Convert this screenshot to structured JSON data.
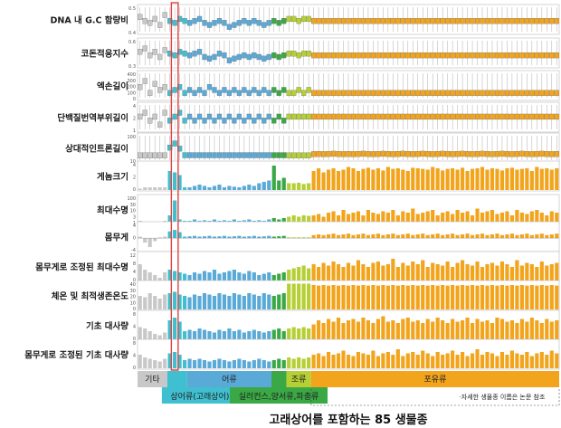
{
  "title": "고래상어를 포함하는 85 생물종",
  "note": "·자세한 생물종 이름은 논문 참조",
  "colors": {
    "other": "#c8c8c8",
    "shark": "#3fbfcf",
    "whale_shark": "#1fb6c8",
    "fish": "#5aaad8",
    "amphibian_reptile": "#3aa845",
    "bird": "#b5cf34",
    "mammal": "#f2a41c",
    "highlight": "#e04040"
  },
  "chart_data": {
    "type": "bar",
    "n_species": 85,
    "groups": [
      {
        "name": "기타",
        "start": 0,
        "count": 6,
        "color": "#c8c8c8"
      },
      {
        "name": "상어류(고래상어)",
        "start": 6,
        "count": 4,
        "color": "#3fbfcf"
      },
      {
        "name": "어류",
        "start": 10,
        "count": 17,
        "color": "#5aaad8"
      },
      {
        "name": "실러컨스,양서류,파충류",
        "start": 27,
        "count": 3,
        "color": "#3aa845"
      },
      {
        "name": "조류",
        "start": 30,
        "count": 5,
        "color": "#b5cf34"
      },
      {
        "name": "포유류",
        "start": 35,
        "count": 50,
        "color": "#f2a41c"
      }
    ],
    "highlight_index": 7,
    "panels": [
      {
        "label": "DNA 내 G.C 함량비",
        "kind": "box",
        "ticks": [
          "0.5",
          "0.4"
        ],
        "values": [
          0.47,
          0.45,
          0.44,
          0.46,
          0.43,
          0.48,
          0.45,
          0.44,
          0.46,
          0.45,
          0.44,
          0.45,
          0.46,
          0.44,
          0.43,
          0.44,
          0.45,
          0.44,
          0.42,
          0.43,
          0.44,
          0.45,
          0.44,
          0.45,
          0.44,
          0.43,
          0.44,
          0.45,
          0.44,
          0.45,
          0.46,
          0.46,
          0.45,
          0.46,
          0.46,
          0.45,
          0.45,
          0.45,
          0.45,
          0.45,
          0.45,
          0.45,
          0.45,
          0.45,
          0.45,
          0.45,
          0.45,
          0.45,
          0.45,
          0.45,
          0.45,
          0.45,
          0.45,
          0.45,
          0.45,
          0.45,
          0.45,
          0.45,
          0.45,
          0.45,
          0.45,
          0.45,
          0.45,
          0.45,
          0.45,
          0.45,
          0.45,
          0.45,
          0.45,
          0.45,
          0.45,
          0.45,
          0.45,
          0.45,
          0.45,
          0.45,
          0.45,
          0.45,
          0.45,
          0.45,
          0.45,
          0.45,
          0.45,
          0.45,
          0.45
        ]
      },
      {
        "label": "코돈적응지수",
        "kind": "box",
        "ticks": [
          "0.6",
          "0.3"
        ],
        "values": [
          0.5,
          0.52,
          0.48,
          0.5,
          0.47,
          0.51,
          0.49,
          0.48,
          0.5,
          0.49,
          0.48,
          0.49,
          0.5,
          0.47,
          0.46,
          0.47,
          0.49,
          0.48,
          0.45,
          0.46,
          0.47,
          0.48,
          0.47,
          0.48,
          0.47,
          0.46,
          0.47,
          0.48,
          0.47,
          0.48,
          0.49,
          0.49,
          0.48,
          0.49,
          0.49,
          0.48,
          0.48,
          0.48,
          0.48,
          0.48,
          0.48,
          0.48,
          0.48,
          0.48,
          0.48,
          0.48,
          0.48,
          0.48,
          0.48,
          0.48,
          0.48,
          0.48,
          0.48,
          0.48,
          0.48,
          0.48,
          0.48,
          0.48,
          0.48,
          0.48,
          0.48,
          0.48,
          0.48,
          0.48,
          0.48,
          0.48,
          0.48,
          0.48,
          0.48,
          0.48,
          0.48,
          0.48,
          0.48,
          0.48,
          0.48,
          0.48,
          0.48,
          0.48,
          0.48,
          0.48,
          0.48,
          0.48,
          0.48,
          0.48,
          0.48
        ]
      },
      {
        "label": "엑손길이",
        "kind": "box",
        "ticks": [
          "400",
          "300",
          "200",
          "100",
          "0"
        ],
        "values": [
          160,
          170,
          150,
          165,
          155,
          160,
          150,
          155,
          160,
          150,
          155,
          150,
          155,
          150,
          160,
          155,
          150,
          155,
          150,
          155,
          150,
          155,
          150,
          155,
          150,
          155,
          150,
          155,
          150,
          155,
          150,
          150,
          155,
          150,
          155,
          150,
          150,
          150,
          150,
          150,
          150,
          150,
          150,
          150,
          150,
          150,
          150,
          150,
          150,
          150,
          150,
          150,
          150,
          150,
          150,
          150,
          150,
          150,
          150,
          150,
          150,
          150,
          150,
          150,
          150,
          150,
          150,
          150,
          150,
          150,
          150,
          150,
          150,
          150,
          150,
          150,
          150,
          150,
          150,
          150,
          150,
          150,
          150,
          150,
          150
        ]
      },
      {
        "label": "단백질번역부위길이",
        "kind": "box",
        "ticks": [
          "4",
          "2",
          "1"
        ],
        "values": [
          1.8,
          1.9,
          1.7,
          1.8,
          1.6,
          1.9,
          1.7,
          1.8,
          1.9,
          1.7,
          1.8,
          1.7,
          1.8,
          1.7,
          1.8,
          1.7,
          1.8,
          1.7,
          1.8,
          1.7,
          1.8,
          1.7,
          1.8,
          1.7,
          1.8,
          1.7,
          1.8,
          1.7,
          1.8,
          1.7,
          1.8,
          1.8,
          1.8,
          1.8,
          1.8,
          1.8,
          1.8,
          1.8,
          1.8,
          1.8,
          1.8,
          1.8,
          1.8,
          1.8,
          1.8,
          1.8,
          1.8,
          1.8,
          1.8,
          1.8,
          1.8,
          1.8,
          1.8,
          1.8,
          1.8,
          1.8,
          1.8,
          1.8,
          1.8,
          1.8,
          1.8,
          1.8,
          1.8,
          1.8,
          1.8,
          1.8,
          1.8,
          1.8,
          1.8,
          1.8,
          1.8,
          1.8,
          1.8,
          1.8,
          1.8,
          1.8,
          1.8,
          1.8,
          1.8,
          1.8,
          1.8,
          1.8,
          1.8,
          1.8,
          1.8
        ]
      },
      {
        "label": "상대적인트론길이",
        "kind": "box",
        "ticks": [
          "100",
          "10"
        ],
        "values": [
          2,
          2,
          2,
          2,
          2,
          2,
          40,
          60,
          35,
          3,
          3,
          3,
          3,
          3,
          3,
          3,
          3,
          3,
          3,
          3,
          3,
          3,
          3,
          3,
          3,
          3,
          3,
          3,
          3,
          3,
          2,
          2,
          2,
          2,
          2,
          8,
          9,
          8,
          9,
          10,
          9,
          8,
          9,
          8,
          9,
          10,
          9,
          8,
          9,
          10,
          9,
          8,
          9,
          10,
          9,
          8,
          9,
          10,
          9,
          8,
          9,
          10,
          9,
          8,
          9,
          10,
          9,
          8,
          9,
          10,
          9,
          8,
          9,
          10,
          9,
          8,
          9,
          10,
          9,
          8,
          9,
          10,
          9,
          8,
          9
        ]
      },
      {
        "label": "게놈크기",
        "kind": "bar",
        "ticks": [
          "4",
          "2",
          "0"
        ],
        "values": [
          0.05,
          0.1,
          0.1,
          0.1,
          0.1,
          0.1,
          0.7,
          0.65,
          0.55,
          0.1,
          0.1,
          0.15,
          0.2,
          0.15,
          0.1,
          0.15,
          0.2,
          0.1,
          0.15,
          0.12,
          0.1,
          0.15,
          0.2,
          0.15,
          0.25,
          0.3,
          0.35,
          0.9,
          0.35,
          0.45,
          0.25,
          0.25,
          0.27,
          0.22,
          0.25,
          0.7,
          0.8,
          0.65,
          0.75,
          0.8,
          0.7,
          0.75,
          0.85,
          0.8,
          0.7,
          0.78,
          0.82,
          0.75,
          0.8,
          0.72,
          0.85,
          0.78,
          0.8,
          0.75,
          0.7,
          0.82,
          0.8,
          0.78,
          0.75,
          0.85,
          0.8,
          0.72,
          0.78,
          0.8,
          0.75,
          0.82,
          0.7,
          0.78,
          0.8,
          0.85,
          0.75,
          0.8,
          0.78,
          0.72,
          0.8,
          0.82,
          0.75,
          0.78,
          0.8,
          0.7,
          0.85,
          0.78,
          0.8,
          0.75,
          0.8
        ]
      },
      {
        "label": "최대수명",
        "kind": "bar",
        "ticks": [
          "100",
          "30",
          "10",
          "3",
          "1"
        ],
        "values": [
          0.1,
          0.05,
          0.05,
          0.05,
          0.05,
          0.1,
          0.3,
          0.85,
          0.15,
          0.1,
          0.1,
          0.15,
          0.1,
          0.12,
          0.1,
          0.15,
          0.1,
          0.12,
          0.1,
          0.15,
          0.1,
          0.12,
          0.15,
          0.1,
          0.12,
          0.1,
          0.15,
          0.2,
          0.15,
          0.2,
          0.25,
          0.3,
          0.25,
          0.3,
          0.28,
          0.3,
          0.35,
          0.25,
          0.4,
          0.45,
          0.3,
          0.5,
          0.35,
          0.4,
          0.45,
          0.3,
          0.5,
          0.4,
          0.35,
          0.45,
          0.4,
          0.5,
          0.3,
          0.45,
          0.4,
          0.55,
          0.35,
          0.4,
          0.45,
          0.5,
          0.3,
          0.4,
          0.45,
          0.35,
          0.5,
          0.4,
          0.45,
          0.3,
          0.55,
          0.4,
          0.45,
          0.5,
          0.35,
          0.4,
          0.45,
          0.3,
          0.5,
          0.4,
          0.35,
          0.45,
          0.5,
          0.4,
          0.3,
          0.45,
          0.4
        ]
      },
      {
        "label": "몸무게",
        "kind": "bar",
        "ticks": [
          "4",
          "0",
          "-4"
        ],
        "values": [
          0.1,
          -0.3,
          -0.6,
          -0.2,
          0.05,
          0.1,
          0.45,
          0.55,
          0.4,
          0.1,
          0.12,
          0.15,
          0.1,
          0.12,
          0.15,
          0.1,
          0.12,
          0.15,
          0.1,
          0.12,
          0.15,
          0.1,
          0.12,
          0.15,
          0.1,
          0.12,
          0.15,
          0.1,
          0.12,
          0.15,
          0.05,
          0.05,
          0.05,
          0.05,
          0.05,
          0.2,
          0.25,
          0.2,
          0.25,
          0.3,
          0.2,
          0.25,
          0.3,
          0.2,
          0.25,
          0.3,
          0.2,
          0.25,
          0.3,
          0.2,
          0.25,
          0.3,
          0.2,
          0.25,
          0.3,
          0.2,
          0.25,
          0.3,
          0.2,
          0.25,
          0.3,
          0.2,
          0.25,
          0.3,
          0.2,
          0.25,
          0.3,
          0.2,
          0.25,
          0.3,
          0.2,
          0.25,
          0.3,
          0.2,
          0.25,
          0.3,
          0.2,
          0.25,
          0.3,
          0.2,
          0.25,
          0.3,
          0.2,
          0.25,
          0.3
        ]
      },
      {
        "label": "몸무게로 조정된 최대수명",
        "kind": "bar",
        "ticks": [
          "12",
          "8",
          "4",
          "0"
        ],
        "values": [
          0.6,
          0.4,
          0.3,
          0.2,
          0.1,
          0.3,
          0.4,
          0.35,
          0.3,
          0.25,
          0.2,
          0.3,
          0.25,
          0.35,
          0.3,
          0.4,
          0.25,
          0.3,
          0.35,
          0.4,
          0.3,
          0.25,
          0.35,
          0.3,
          0.2,
          0.25,
          0.3,
          0.2,
          0.25,
          0.3,
          0.4,
          0.45,
          0.5,
          0.55,
          0.45,
          0.6,
          0.5,
          0.65,
          0.55,
          0.7,
          0.6,
          0.5,
          0.65,
          0.55,
          0.75,
          0.6,
          0.5,
          0.65,
          0.7,
          0.55,
          0.6,
          0.8,
          0.5,
          0.65,
          0.55,
          0.7,
          0.6,
          0.75,
          0.5,
          0.65,
          0.6,
          0.55,
          0.7,
          0.5,
          0.65,
          0.75,
          0.6,
          0.55,
          0.7,
          0.5,
          0.6,
          0.65,
          0.55,
          0.7,
          0.6,
          0.5,
          0.75,
          0.55,
          0.65,
          0.6,
          0.5,
          0.7,
          0.55,
          0.6,
          0.65
        ]
      },
      {
        "label": "체온 및 최적생존온도",
        "kind": "bar",
        "ticks": [
          "40",
          "30",
          "20",
          "10",
          "0"
        ],
        "values": [
          0.5,
          0.45,
          0.6,
          0.5,
          0.4,
          0.55,
          0.6,
          0.65,
          0.55,
          0.5,
          0.45,
          0.55,
          0.5,
          0.6,
          0.55,
          0.5,
          0.6,
          0.55,
          0.5,
          0.6,
          0.55,
          0.5,
          0.6,
          0.55,
          0.5,
          0.6,
          0.55,
          0.5,
          0.55,
          0.6,
          0.95,
          0.95,
          0.95,
          0.95,
          0.95,
          0.9,
          0.88,
          0.9,
          0.88,
          0.9,
          0.88,
          0.9,
          0.88,
          0.9,
          0.88,
          0.9,
          0.88,
          0.9,
          0.88,
          0.9,
          0.88,
          0.9,
          0.88,
          0.9,
          0.88,
          0.9,
          0.88,
          0.9,
          0.88,
          0.9,
          0.88,
          0.9,
          0.88,
          0.9,
          0.88,
          0.9,
          0.88,
          0.9,
          0.88,
          0.9,
          0.88,
          0.9,
          0.88,
          0.9,
          0.88,
          0.9,
          0.88,
          0.9,
          0.88,
          0.9,
          0.88,
          0.9,
          0.88,
          0.9,
          0.88
        ]
      },
      {
        "label": "기초 대사량",
        "kind": "bar",
        "ticks": [
          "8",
          "4",
          "0"
        ],
        "values": [
          0.45,
          0.4,
          0.3,
          0.2,
          0.15,
          0.25,
          0.7,
          0.8,
          0.65,
          0.3,
          0.35,
          0.3,
          0.4,
          0.35,
          0.3,
          0.25,
          0.35,
          0.3,
          0.4,
          0.3,
          0.35,
          0.25,
          0.3,
          0.35,
          0.3,
          0.25,
          0.3,
          0.35,
          0.4,
          0.3,
          0.4,
          0.45,
          0.4,
          0.45,
          0.4,
          0.55,
          0.7,
          0.6,
          0.75,
          0.65,
          0.8,
          0.6,
          0.7,
          0.75,
          0.65,
          0.8,
          0.7,
          0.6,
          0.75,
          0.85,
          0.65,
          0.7,
          0.6,
          0.75,
          0.8,
          0.65,
          0.7,
          0.6,
          0.75,
          0.65,
          0.8,
          0.7,
          0.6,
          0.75,
          0.65,
          0.7,
          0.8,
          0.6,
          0.75,
          0.65,
          0.7,
          0.6,
          0.8,
          0.75,
          0.65,
          0.7,
          0.6,
          0.75,
          0.65,
          0.8,
          0.7,
          0.6,
          0.75,
          0.65,
          0.7
        ]
      },
      {
        "label": "몸무게로 조정된 기초 대사량",
        "kind": "bar",
        "ticks": [
          "8",
          "4",
          "0"
        ],
        "values": [
          0.5,
          0.4,
          0.35,
          0.3,
          0.25,
          0.35,
          0.55,
          0.6,
          0.5,
          0.3,
          0.35,
          0.3,
          0.35,
          0.3,
          0.25,
          0.3,
          0.35,
          0.3,
          0.25,
          0.3,
          0.35,
          0.3,
          0.25,
          0.3,
          0.35,
          0.3,
          0.25,
          0.3,
          0.35,
          0.3,
          0.4,
          0.35,
          0.4,
          0.35,
          0.4,
          0.5,
          0.55,
          0.45,
          0.6,
          0.5,
          0.55,
          0.65,
          0.5,
          0.45,
          0.6,
          0.55,
          0.5,
          0.65,
          0.45,
          0.55,
          0.6,
          0.5,
          0.7,
          0.45,
          0.55,
          0.6,
          0.5,
          0.65,
          0.55,
          0.45,
          0.6,
          0.5,
          0.55,
          0.65,
          0.5,
          0.6,
          0.45,
          0.55,
          0.7,
          0.5,
          0.6,
          0.55,
          0.45,
          0.6,
          0.5,
          0.65,
          0.55,
          0.5,
          0.6,
          0.45,
          0.55,
          0.6,
          0.5,
          0.65,
          0.55
        ]
      }
    ]
  }
}
